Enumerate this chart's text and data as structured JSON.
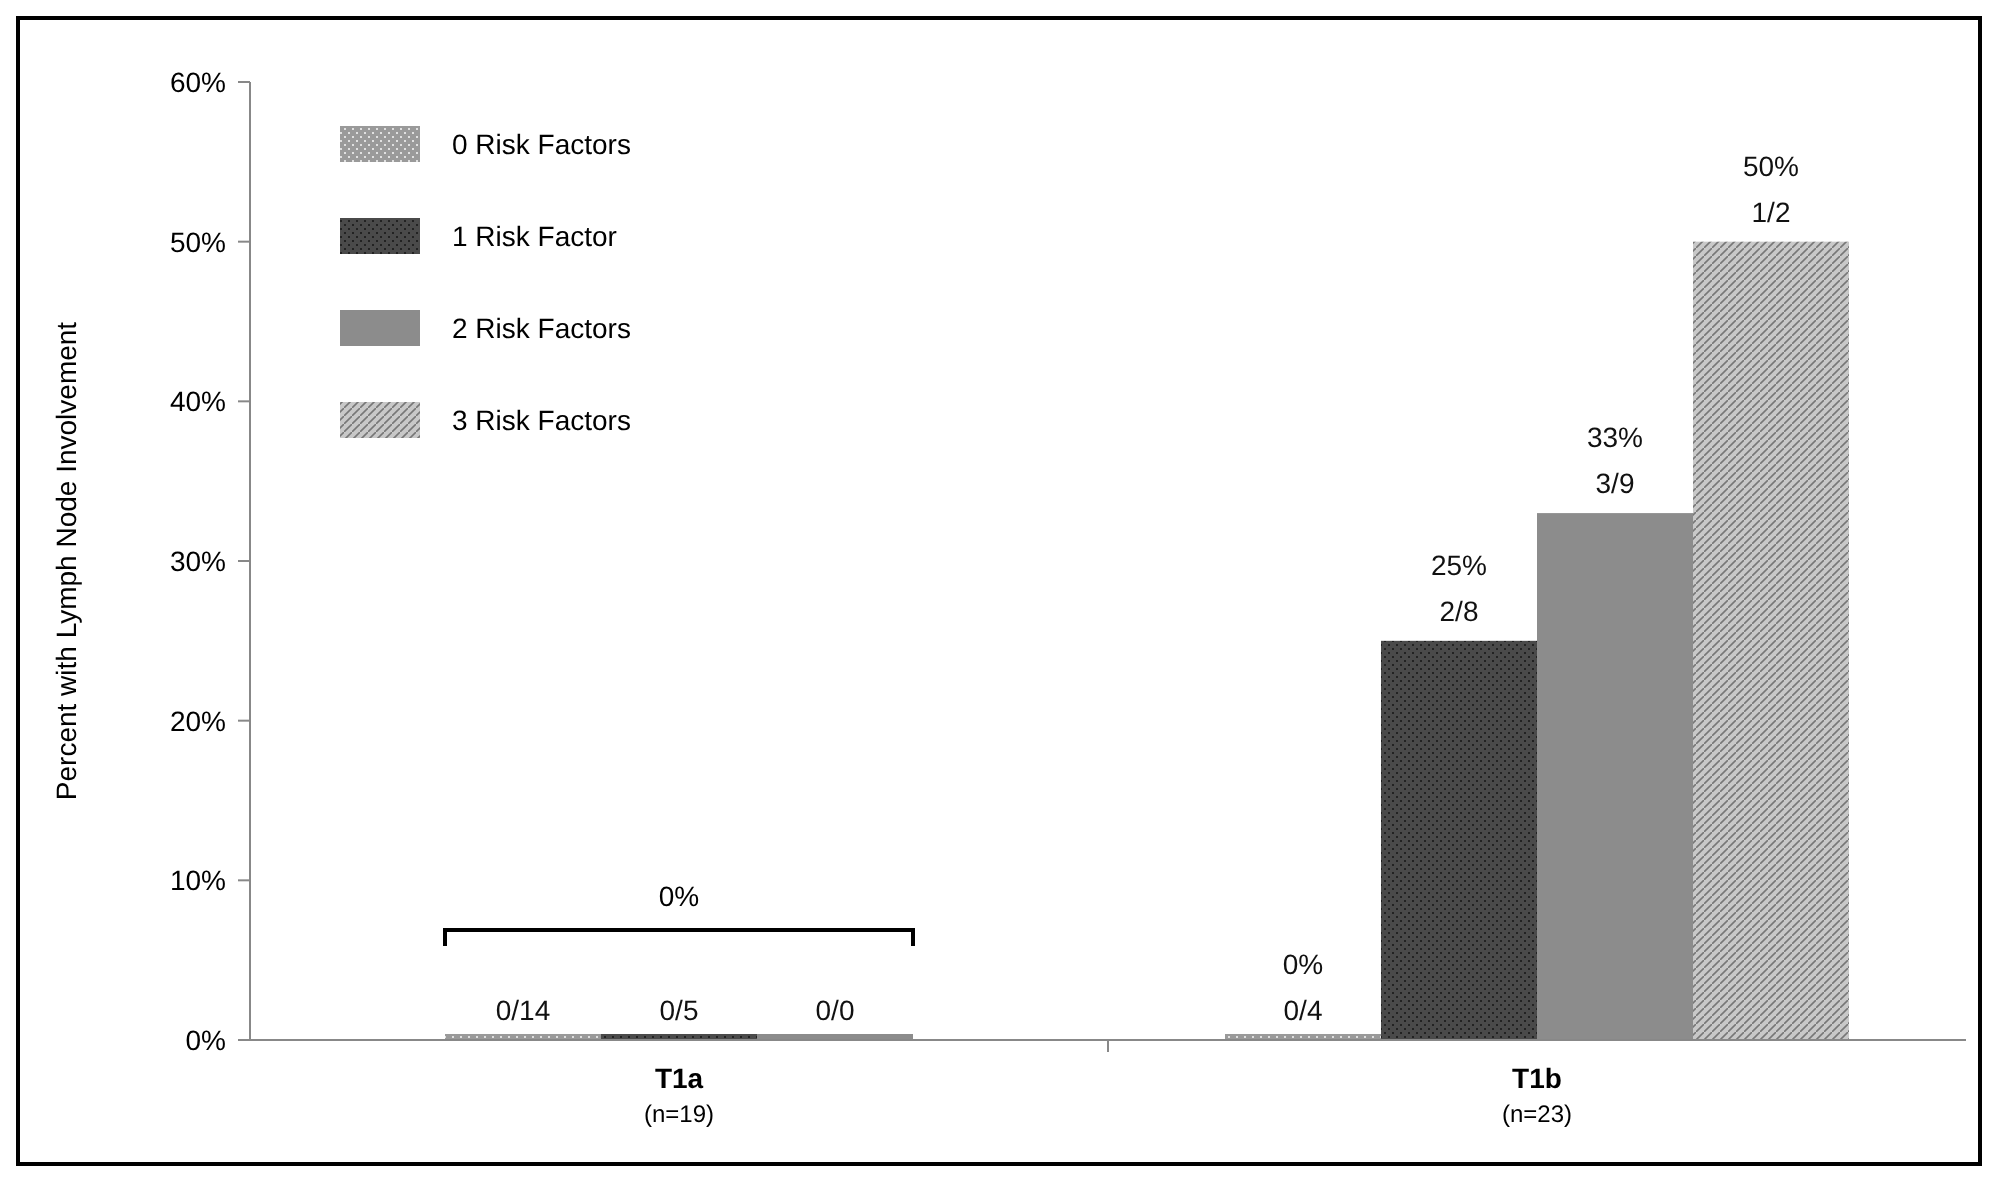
{
  "chart_data": {
    "type": "bar",
    "ylabel": "Percent with Lymph Node Involvement",
    "categories": [
      "T1a\n(n=19)",
      "T1b\n(n=23)"
    ],
    "series": [
      {
        "name": "0 Risk Factors",
        "color": "#9a9a9a",
        "values": [
          0,
          0
        ],
        "value_labels": [
          "0/14",
          "0%\n0/4"
        ]
      },
      {
        "name": "1 Risk Factor",
        "color": "#4a4a4a",
        "values": [
          0,
          25
        ],
        "value_labels": [
          "0/5",
          "25%\n2/8"
        ]
      },
      {
        "name": "2 Risk Factors",
        "color": "#8c8c8c",
        "values": [
          0,
          33
        ],
        "value_labels": [
          "0/0",
          "33%\n3/9"
        ]
      },
      {
        "name": "3 Risk Factors",
        "color": "#c8c8c8",
        "values": [
          null,
          50
        ],
        "value_labels": [
          null,
          "50%\n1/2"
        ]
      }
    ],
    "ylim": [
      0,
      60
    ],
    "yticks": [
      {
        "value": 0,
        "label": "0%"
      },
      {
        "value": 10,
        "label": "10%"
      },
      {
        "value": 20,
        "label": "20%"
      },
      {
        "value": 30,
        "label": "30%"
      },
      {
        "value": 40,
        "label": "40%"
      },
      {
        "value": 50,
        "label": "50%"
      },
      {
        "value": 60,
        "label": "60%"
      }
    ],
    "annotations": [
      "0%"
    ],
    "legend": "top left",
    "grid": false
  }
}
